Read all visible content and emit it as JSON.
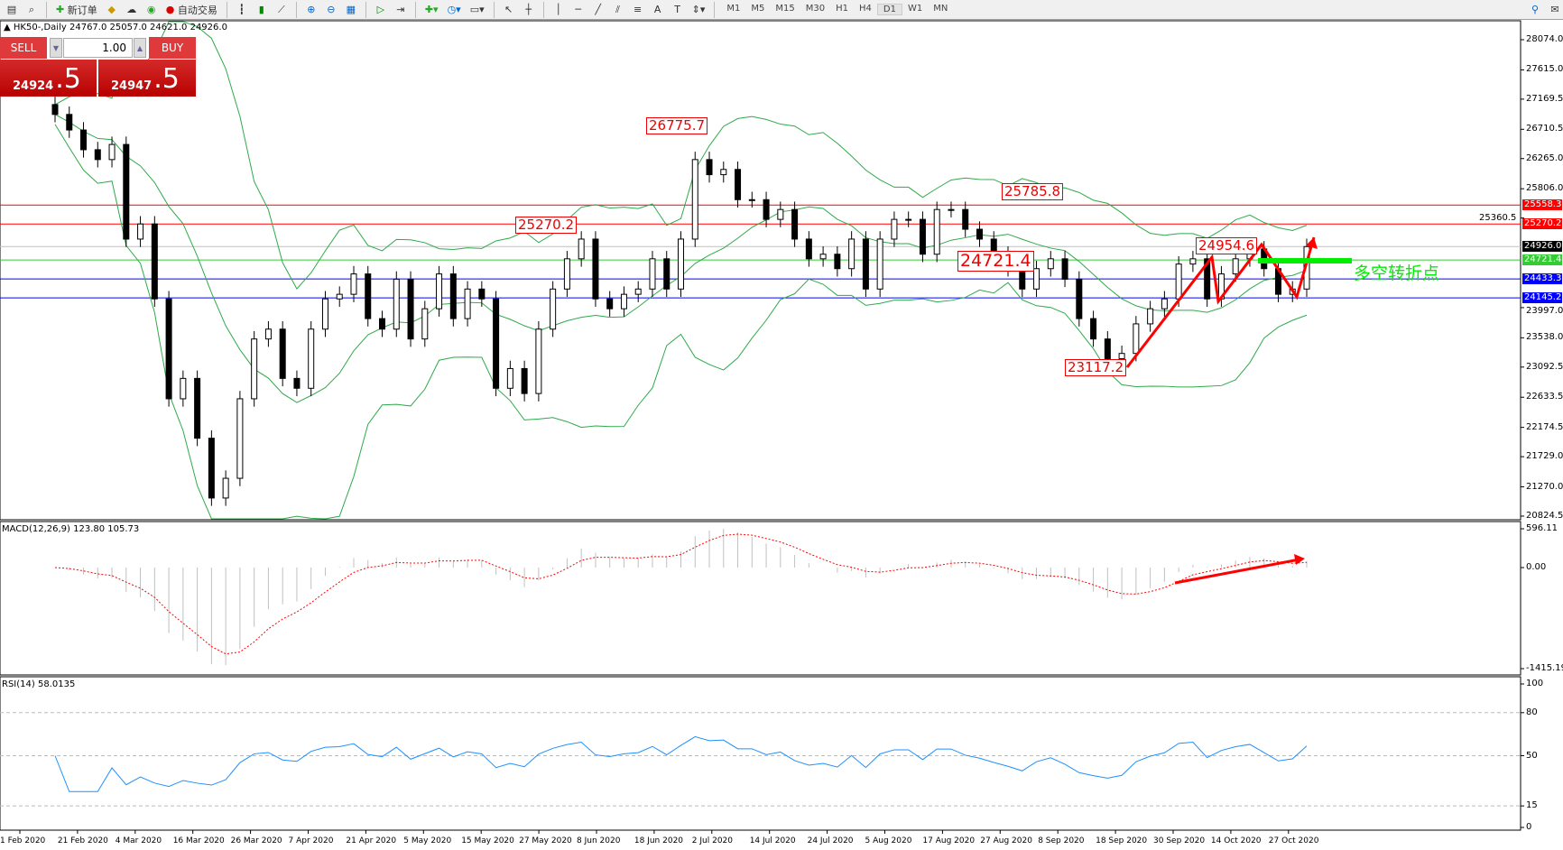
{
  "toolbar": {
    "new_order": "新订单",
    "auto_trading": "自动交易",
    "timeframes": [
      "M1",
      "M5",
      "M15",
      "M30",
      "H1",
      "H4",
      "D1",
      "W1",
      "MN"
    ],
    "active_timeframe": "D1"
  },
  "header": {
    "symbol": "HK50-,Daily",
    "ohlc": "24767.0 25057.0 24621.0 24926.0"
  },
  "trade_panel": {
    "sell_label": "SELL",
    "buy_label": "BUY",
    "lot": "1.00",
    "sell_price_main": "24924",
    "sell_price_big": ".5",
    "buy_price_main": "24947",
    "buy_price_big": ".5"
  },
  "price_axis": [
    "28074.0",
    "27615.0",
    "27169.5",
    "26710.5",
    "26265.0",
    "25806.0",
    "25360.5",
    "23997.0",
    "23538.0",
    "23092.5",
    "22633.5",
    "22174.5",
    "21729.0",
    "21270.0",
    "20824.5"
  ],
  "levels": [
    {
      "value": "25558.3",
      "color": "#ff0000"
    },
    {
      "value": "25270.2",
      "color": "#ff0000"
    },
    {
      "value": "24926.0",
      "color": "#000000",
      "line": "#c0c0c0"
    },
    {
      "value": "24721.4",
      "color": "#33cc33"
    },
    {
      "value": "24433.3",
      "color": "#0000ff"
    },
    {
      "value": "24145.2",
      "color": "#0000ff"
    }
  ],
  "annotations": [
    "26775.7",
    "25270.2",
    "25785.8",
    "24721.4",
    "24954.6",
    "23117.2"
  ],
  "pivot_text": "多空转折点",
  "macd": {
    "label": "MACD(12,26,9) 123.80 105.73",
    "axis": [
      "596.11",
      "0.00",
      "-1415.19"
    ]
  },
  "rsi": {
    "label": "RSI(14) 58.0135",
    "axis": [
      "100",
      "80",
      "50",
      "15",
      "0"
    ]
  },
  "dates": [
    "1 Feb 2020",
    "21 Feb 2020",
    "4 Mar 2020",
    "16 Mar 2020",
    "26 Mar 2020",
    "7 Apr 2020",
    "21 Apr 2020",
    "5 May 2020",
    "15 May 2020",
    "27 May 2020",
    "8 Jun 2020",
    "18 Jun 2020",
    "2 Jul 2020",
    "14 Jul 2020",
    "24 Jul 2020",
    "5 Aug 2020",
    "17 Aug 2020",
    "27 Aug 2020",
    "8 Sep 2020",
    "18 Sep 2020",
    "30 Sep 2020",
    "14 Oct 2020",
    "27 Oct 2020"
  ],
  "chart_data": {
    "type": "candlestick",
    "ylim": [
      20824.5,
      28074.0
    ],
    "closes": [
      26937,
      26700,
      26400,
      26250,
      26480,
      25040,
      25270,
      24130,
      22610,
      22920,
      22010,
      21100,
      21400,
      22610,
      23520,
      23670,
      22920,
      22770,
      23670,
      24130,
      24200,
      24510,
      23830,
      23670,
      24430,
      23520,
      23980,
      24510,
      23830,
      24280,
      24130,
      22770,
      23070,
      22690,
      23670,
      24280,
      24740,
      25040,
      24130,
      23980,
      24200,
      24280,
      24740,
      24280,
      25040,
      26250,
      26020,
      26100,
      25640,
      25640,
      25340,
      25490,
      25040,
      24740,
      24810,
      24590,
      25040,
      24280,
      25040,
      25340,
      25340,
      24810,
      25490,
      25490,
      25190,
      25040,
      24810,
      24590,
      24280,
      24590,
      24740,
      24430,
      23830,
      23520,
      23220,
      23300,
      23750,
      23980,
      24130,
      24660,
      24740,
      24130,
      24510,
      24740,
      24890,
      24590,
      24200,
      24280,
      24926
    ]
  },
  "colors": {
    "bands": "#2eaa4a",
    "rsi": "#1e90ff",
    "macd_signal": "#ff0000",
    "macd_hist": "#c0c0c0",
    "arrows": "#ff0000",
    "pivot": "#00ee00"
  }
}
